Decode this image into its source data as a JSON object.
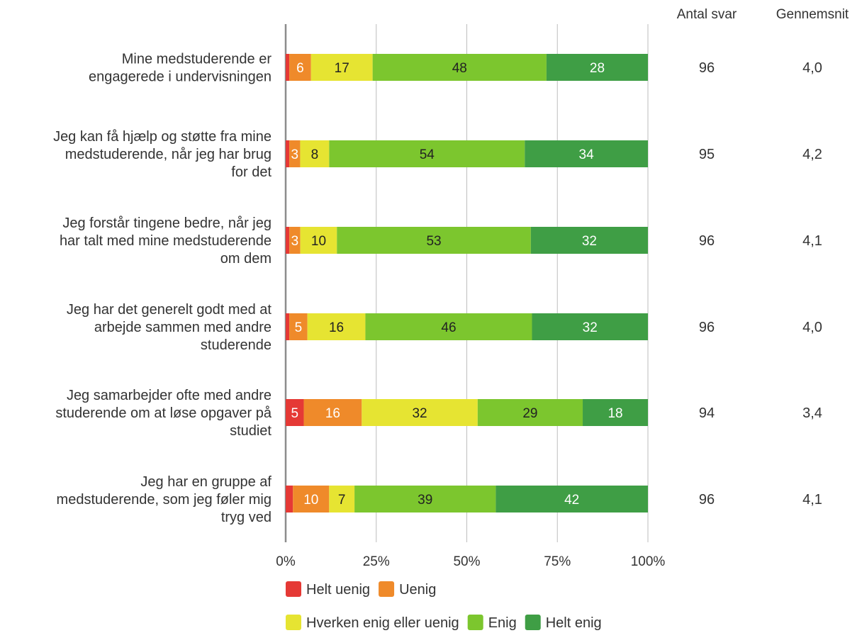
{
  "colors": {
    "helt_uenig": "#e53935",
    "uenig": "#ef8a2a",
    "hverken": "#e6e432",
    "enig": "#7cc62e",
    "helt_enig": "#3f9e45",
    "grid": "#bdbdbd",
    "axis": "#8c8c8c",
    "text": "#333333"
  },
  "columns": {
    "count_header": "Antal svar",
    "mean_header": "Gennemsnit"
  },
  "chart_data": {
    "type": "bar",
    "orientation": "horizontal",
    "stacked": true,
    "percent_scale": true,
    "xlim": [
      0,
      100
    ],
    "x_ticks": [
      "0%",
      "25%",
      "50%",
      "75%",
      "100%"
    ],
    "grid": true,
    "legend_position": "bottom",
    "categories": [
      [
        "Mine medstuderende er",
        "engagerede i undervisningen"
      ],
      [
        "Jeg kan få hjælp og støtte fra mine",
        "medstuderende, når jeg har brug",
        "for det"
      ],
      [
        "Jeg forstår tingene bedre, når jeg",
        "har talt med mine medstuderende",
        "om dem"
      ],
      [
        "Jeg har det generelt godt med at",
        "arbejde sammen med andre",
        "studerende"
      ],
      [
        "Jeg samarbejder ofte med andre",
        "studerende om at løse opgaver på",
        "studiet"
      ],
      [
        "Jeg har en gruppe af",
        "medstuderende, som jeg føler mig",
        "tryg ved"
      ]
    ],
    "series": [
      {
        "name": "Helt uenig",
        "color_key": "helt_uenig",
        "values": [
          1,
          1,
          1,
          1,
          5,
          2
        ],
        "labels": [
          "",
          "",
          "",
          "",
          "5",
          ""
        ]
      },
      {
        "name": "Uenig",
        "color_key": "uenig",
        "values": [
          6,
          3,
          3,
          5,
          16,
          10
        ],
        "labels": [
          "6",
          "3",
          "3",
          "5",
          "16",
          "10"
        ]
      },
      {
        "name": "Hverken enig eller uenig",
        "color_key": "hverken",
        "values": [
          17,
          8,
          10,
          16,
          32,
          7
        ],
        "labels": [
          "17",
          "8",
          "10",
          "16",
          "32",
          "7"
        ]
      },
      {
        "name": "Enig",
        "color_key": "enig",
        "values": [
          48,
          54,
          53,
          46,
          29,
          39
        ],
        "labels": [
          "48",
          "54",
          "53",
          "46",
          "29",
          "39"
        ]
      },
      {
        "name": "Helt enig",
        "color_key": "helt_enig",
        "values": [
          28,
          34,
          32,
          32,
          18,
          42
        ],
        "labels": [
          "28",
          "34",
          "32",
          "32",
          "18",
          "42"
        ]
      }
    ],
    "counts": [
      "96",
      "95",
      "96",
      "96",
      "94",
      "96"
    ],
    "means": [
      "4,0",
      "4,2",
      "4,1",
      "4,0",
      "3,4",
      "4,1"
    ]
  }
}
